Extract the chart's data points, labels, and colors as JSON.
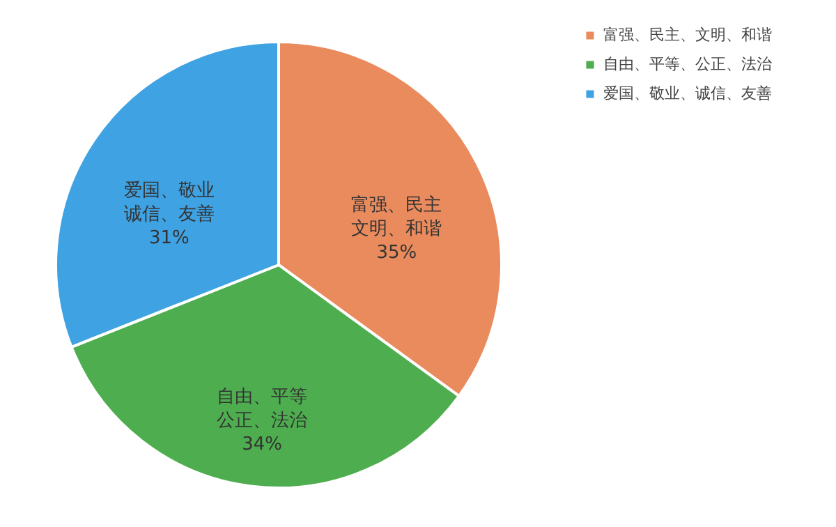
{
  "chart_data": {
    "type": "pie",
    "categories": [
      "富强、民主、文明、和谐",
      "自由、平等、公正、法治",
      "爱国、敬业、诚信、友善"
    ],
    "values": [
      35,
      34,
      31
    ],
    "colors": [
      "#ea8b5e",
      "#4eae4f",
      "#3fa2e2"
    ],
    "value_labels": [
      "35%",
      "34%",
      "31%"
    ],
    "annotations": [
      "富强、民主",
      "文明、和谐",
      "自由、平等",
      "公正、法治",
      "爱国、敬业",
      "诚信、友善"
    ],
    "legend": "right"
  }
}
